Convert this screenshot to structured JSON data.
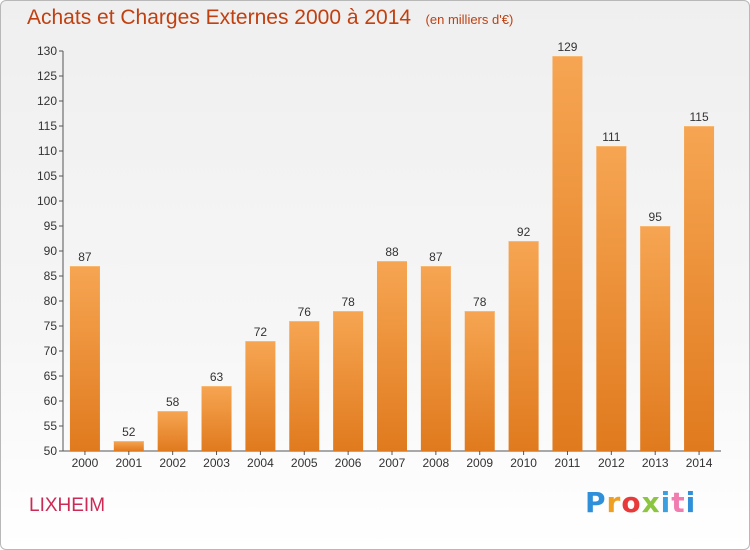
{
  "header": {
    "title": "Achats et Charges Externes 2000 à 2014",
    "unit": "(en milliers d'€)"
  },
  "footer": {
    "town": "LIXHEIM",
    "logo_letters": [
      "P",
      "r",
      "o",
      "x",
      "i",
      "t",
      "i"
    ]
  },
  "colors": {
    "title": "#c14010",
    "town": "#cc2a55",
    "bar_light": "#f6a552",
    "bar_dark": "#e07a1e"
  },
  "chart_data": {
    "type": "bar",
    "title": "Achats et Charges Externes 2000 à 2014",
    "subtitle": "(en milliers d'€)",
    "xlabel": "",
    "ylabel": "",
    "categories": [
      "2000",
      "2001",
      "2002",
      "2003",
      "2004",
      "2005",
      "2006",
      "2007",
      "2008",
      "2009",
      "2010",
      "2011",
      "2012",
      "2013",
      "2014"
    ],
    "values": [
      87,
      52,
      58,
      63,
      72,
      76,
      78,
      88,
      87,
      78,
      92,
      129,
      111,
      95,
      115
    ],
    "ylim": [
      50,
      130
    ],
    "yticks": [
      50,
      55,
      60,
      65,
      70,
      75,
      80,
      85,
      90,
      95,
      100,
      105,
      110,
      115,
      120,
      125,
      130
    ],
    "grid": false,
    "legend": "none",
    "data_labels": true
  }
}
